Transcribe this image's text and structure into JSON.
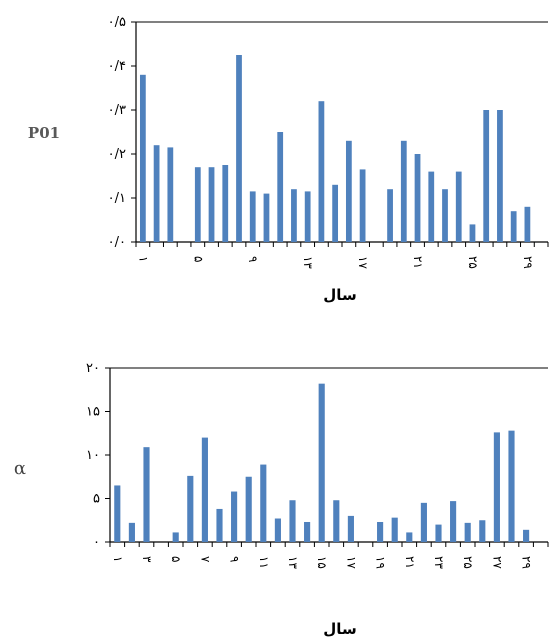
{
  "chart_data": [
    {
      "type": "bar",
      "title": "",
      "ylabel": "P01",
      "xlabel": "سال",
      "ylim": [
        0,
        0.5
      ],
      "yticks": [
        0,
        0.1,
        0.2,
        0.3,
        0.4,
        0.5
      ],
      "ytick_labels": [
        "۰/۰",
        "۰/۱",
        "۰/۲",
        "۰/۳",
        "۰/۴",
        "۰/۵"
      ],
      "color": "#4f81bd",
      "categories": [
        1,
        2,
        3,
        4,
        5,
        6,
        7,
        8,
        9,
        10,
        11,
        12,
        13,
        14,
        15,
        16,
        17,
        18,
        19,
        20,
        21,
        22,
        23,
        24,
        25,
        26,
        27,
        28,
        29,
        30
      ],
      "xtick_labels": {
        "1": "۱",
        "5": "۵",
        "9": "۹",
        "13": "۱۳",
        "17": "۱۷",
        "21": "۲۱",
        "25": "۲۵",
        "29": "۲۹"
      },
      "values": [
        0.38,
        0.22,
        0.215,
        null,
        0.17,
        0.17,
        0.175,
        0.425,
        0.115,
        0.11,
        0.25,
        0.12,
        0.115,
        0.32,
        0.13,
        0.23,
        0.165,
        null,
        0.12,
        0.23,
        0.2,
        0.16,
        0.12,
        0.16,
        0.04,
        0.3,
        0.3,
        0.07,
        0.08,
        null
      ],
      "grid": false,
      "legend": "none"
    },
    {
      "type": "bar",
      "title": "",
      "ylabel": "α",
      "xlabel": "سال",
      "ylim": [
        0,
        20
      ],
      "yticks": [
        0,
        5,
        10,
        15,
        20
      ],
      "ytick_labels": [
        "۰",
        "۵",
        "۱۰",
        "۱۵",
        "۲۰"
      ],
      "color": "#4f81bd",
      "categories": [
        1,
        2,
        3,
        4,
        5,
        6,
        7,
        8,
        9,
        10,
        11,
        12,
        13,
        14,
        15,
        16,
        17,
        18,
        19,
        20,
        21,
        22,
        23,
        24,
        25,
        26,
        27,
        28,
        29,
        30
      ],
      "xtick_labels": {
        "1": "۱",
        "3": "۳",
        "5": "۵",
        "7": "۷",
        "9": "۹",
        "11": "۱۱",
        "13": "۱۳",
        "15": "۱۵",
        "17": "۱۷",
        "19": "۱۹",
        "21": "۲۱",
        "23": "۲۳",
        "25": "۲۵",
        "27": "۲۷",
        "29": "۲۹"
      },
      "values": [
        6.5,
        2.2,
        10.9,
        null,
        1.1,
        7.6,
        12.0,
        3.8,
        5.8,
        7.5,
        8.9,
        2.7,
        4.8,
        2.3,
        18.2,
        4.8,
        3.0,
        null,
        2.3,
        2.8,
        1.1,
        4.5,
        2.0,
        4.7,
        2.2,
        2.5,
        12.6,
        12.8,
        1.4,
        null
      ],
      "grid": false,
      "legend": "none"
    }
  ]
}
